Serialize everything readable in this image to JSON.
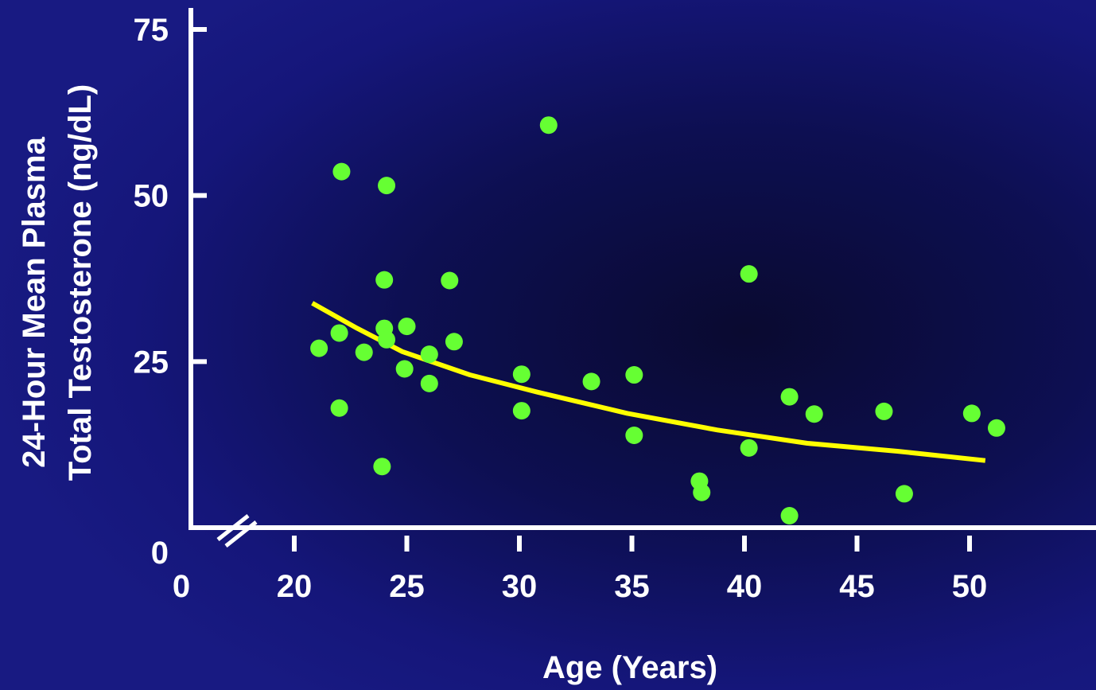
{
  "chart_data": {
    "type": "scatter",
    "title": "",
    "xlabel": "Age (Years)",
    "ylabel_lines": [
      "24-Hour Mean Plasma",
      "Total Testosterone (ng/dL)"
    ],
    "xlim": [
      20,
      50
    ],
    "ylim": [
      0,
      75
    ],
    "axis_break": true,
    "grid": false,
    "x_ticks": [
      {
        "value": 20,
        "label": "20"
      },
      {
        "value": 25,
        "label": "25"
      },
      {
        "value": 30,
        "label": "30"
      },
      {
        "value": 35,
        "label": "35"
      },
      {
        "value": 40,
        "label": "40"
      },
      {
        "value": 45,
        "label": "45"
      },
      {
        "value": 50,
        "label": "50"
      }
    ],
    "x_origin_label": "0",
    "y_ticks": [
      {
        "value": 0,
        "label": "0"
      },
      {
        "value": 25,
        "label": "25"
      },
      {
        "value": 50,
        "label": "50"
      },
      {
        "value": 75,
        "label": "75"
      }
    ],
    "series": [
      {
        "type": "scatter",
        "color": "#66ff33",
        "points": [
          [
            21.1,
            27.0
          ],
          [
            22.0,
            29.3
          ],
          [
            22.0,
            18.0
          ],
          [
            22.1,
            53.6
          ],
          [
            23.1,
            26.4
          ],
          [
            23.9,
            9.2
          ],
          [
            24.0,
            37.3
          ],
          [
            24.0,
            30.0
          ],
          [
            24.1,
            28.3
          ],
          [
            24.1,
            51.5
          ],
          [
            24.9,
            23.9
          ],
          [
            25.0,
            30.3
          ],
          [
            26.0,
            21.7
          ],
          [
            26.0,
            26.1
          ],
          [
            26.9,
            37.2
          ],
          [
            27.1,
            28.0
          ],
          [
            30.1,
            23.1
          ],
          [
            30.1,
            17.6
          ],
          [
            31.3,
            60.6
          ],
          [
            33.2,
            22.0
          ],
          [
            35.1,
            23.0
          ],
          [
            35.1,
            13.9
          ],
          [
            38.0,
            7.0
          ],
          [
            38.1,
            5.3
          ],
          [
            40.2,
            12.0
          ],
          [
            40.2,
            38.2
          ],
          [
            42.0,
            19.7
          ],
          [
            42.0,
            1.8
          ],
          [
            43.1,
            17.1
          ],
          [
            46.2,
            17.5
          ],
          [
            47.1,
            5.1
          ],
          [
            50.1,
            17.2
          ],
          [
            51.2,
            15.0
          ]
        ]
      },
      {
        "type": "line",
        "color": "#ffff00",
        "points": [
          [
            20.8,
            33.8
          ],
          [
            22.8,
            30.0
          ],
          [
            24.8,
            26.5
          ],
          [
            27.8,
            23.0
          ],
          [
            30.8,
            20.4
          ],
          [
            34.8,
            17.2
          ],
          [
            38.8,
            14.7
          ],
          [
            42.8,
            12.7
          ],
          [
            46.8,
            11.5
          ],
          [
            50.7,
            10.1
          ]
        ]
      }
    ]
  }
}
